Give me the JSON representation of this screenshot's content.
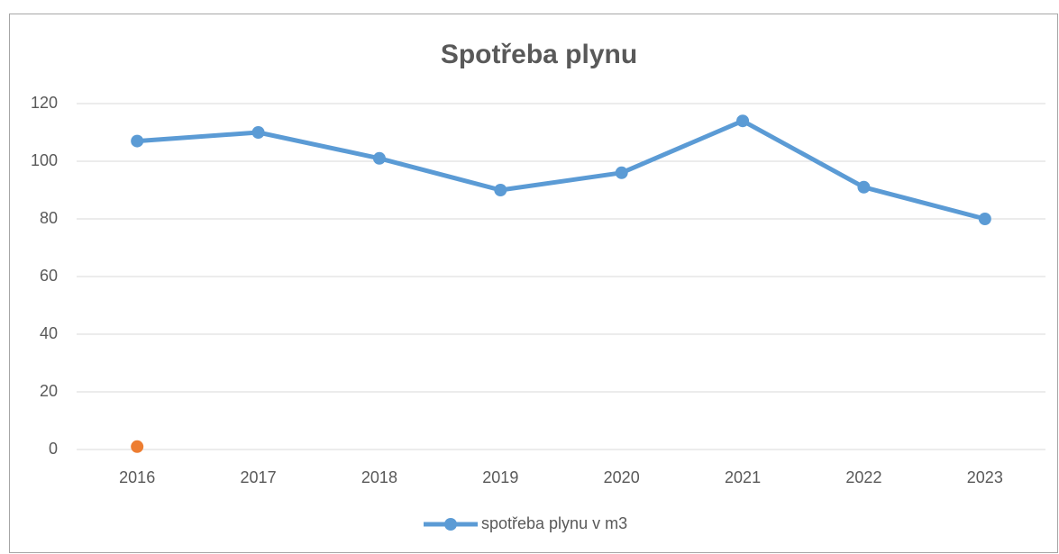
{
  "chart_data": {
    "type": "line",
    "title": "Spotřeba plynu",
    "categories": [
      "2016",
      "2017",
      "2018",
      "2019",
      "2020",
      "2021",
      "2022",
      "2023"
    ],
    "series": [
      {
        "name": "spotřeba plynu v m3",
        "color": "#5b9bd5",
        "values": [
          107,
          110,
          101,
          90,
          96,
          114,
          91,
          80
        ]
      },
      {
        "color": "#ed7d31",
        "values": [
          1,
          null,
          null,
          null,
          null,
          null,
          null,
          null
        ]
      }
    ],
    "ylim": [
      0,
      120
    ],
    "yticks": [
      0,
      20,
      40,
      60,
      80,
      100,
      120
    ],
    "grid": true,
    "legend": "bottom"
  }
}
